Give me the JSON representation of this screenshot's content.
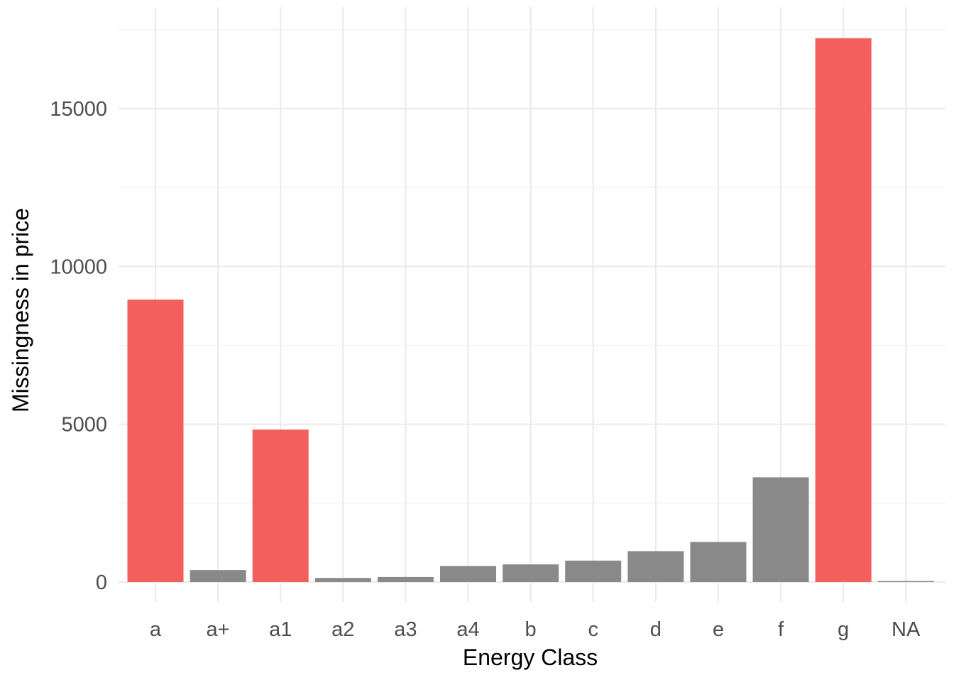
{
  "chart_data": {
    "type": "bar",
    "title": "",
    "xlabel": "Energy Class",
    "ylabel": "Missingness in price",
    "categories": [
      "a",
      "a+",
      "a1",
      "a2",
      "a3",
      "a4",
      "b",
      "c",
      "d",
      "e",
      "f",
      "g",
      "NA"
    ],
    "values": [
      8950,
      380,
      4830,
      130,
      160,
      510,
      560,
      680,
      980,
      1270,
      3320,
      17230,
      30
    ],
    "highlighted": [
      true,
      false,
      true,
      false,
      false,
      false,
      false,
      false,
      false,
      false,
      false,
      true,
      false
    ],
    "ylim": [
      0,
      17500
    ],
    "yticks": [
      0,
      5000,
      10000,
      15000
    ],
    "ytick_labels": [
      "0",
      "5000",
      "10000",
      "15000"
    ],
    "grid": true,
    "legend": "none",
    "colors": {
      "highlight": "#f25f5c",
      "normal": "#898989",
      "grid": "#ebebeb"
    }
  }
}
